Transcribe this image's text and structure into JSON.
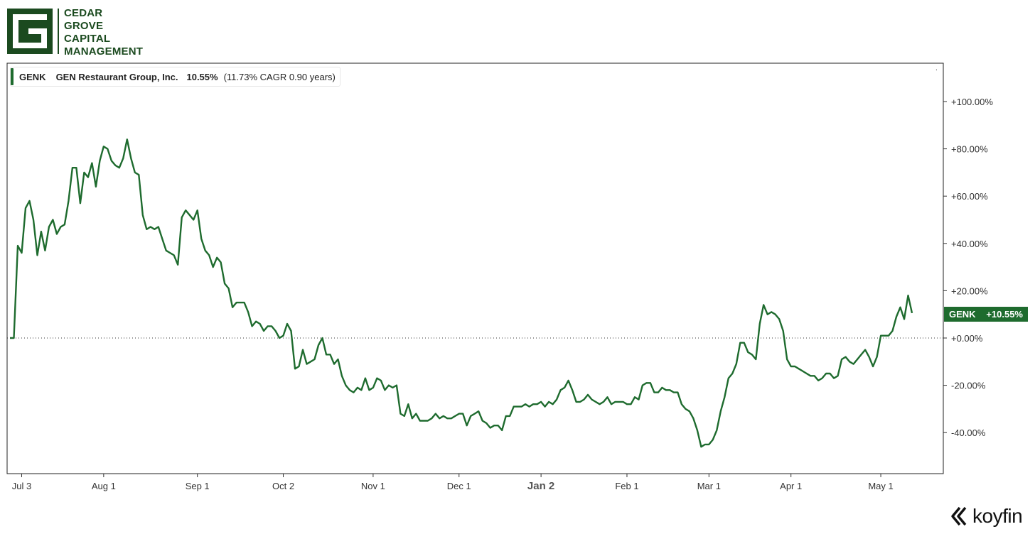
{
  "logo": {
    "lines": [
      "CEDAR",
      "GROVE",
      "CAPITAL",
      "MANAGEMENT"
    ]
  },
  "legend": {
    "ticker": "GENK",
    "name": "GEN Restaurant Group, Inc.",
    "return": "10.55%",
    "cagr_text": "(11.73% CAGR 0.90 years)"
  },
  "price_tag": {
    "ticker": "GENK",
    "value": "+10.55%"
  },
  "brand": {
    "name": "koyfin",
    "icon": "koyfin-logo-icon"
  },
  "colors": {
    "line": "#1e6b2e",
    "brand_green": "#1b4a1f",
    "zero_line": "#333333"
  },
  "chart_data": {
    "type": "line",
    "title": "",
    "xlabel": "",
    "ylabel": "",
    "y_unit": "%",
    "ylim": [
      -58,
      115
    ],
    "y_ticks": [
      100,
      80,
      60,
      40,
      20,
      0,
      -20,
      -40
    ],
    "y_tick_labels": [
      "+100.00%",
      "+80.00%",
      "+60.00%",
      "+40.00%",
      "+20.00%",
      "+0.00%",
      "-20.00%",
      "-40.00%"
    ],
    "x_tick_labels": [
      "Jul 3",
      "Aug 1",
      "Sep 1",
      "Oct 2",
      "Nov 1",
      "Dec 1",
      "Jan 2",
      "Feb 1",
      "Mar 1",
      "Apr 1",
      "May 1"
    ],
    "x_tick_index": [
      3,
      24,
      48,
      70,
      93,
      115,
      136,
      158,
      179,
      200,
      223
    ],
    "bold_x_tick": "Jan 2",
    "zero_line": "dotted",
    "legend": "top-left",
    "grid": false,
    "series": [
      {
        "name": "GENK",
        "values": [
          0,
          0,
          39,
          36,
          55,
          58,
          50,
          35,
          45,
          37,
          47,
          50,
          44,
          47,
          48,
          58,
          72,
          72,
          57,
          70,
          68,
          74,
          64,
          75,
          81,
          80,
          75,
          73,
          72,
          76,
          84,
          76,
          70,
          69,
          52,
          46,
          47,
          46,
          47,
          42,
          37,
          36,
          35,
          31,
          51,
          54,
          52,
          50,
          54,
          42,
          37,
          35,
          30,
          34,
          32,
          23,
          21,
          13,
          15,
          15,
          15,
          11,
          5,
          7,
          6,
          3,
          5,
          5,
          3,
          0,
          1,
          6,
          3,
          -13,
          -12,
          -5,
          -11,
          -10,
          -9,
          -3,
          0,
          -7,
          -7,
          -11,
          -9,
          -16,
          -20,
          -22,
          -23,
          -21,
          -22,
          -17,
          -22,
          -21,
          -17,
          -18,
          -22,
          -20,
          -21,
          -20,
          -32,
          -33,
          -28,
          -34,
          -32,
          -35,
          -35,
          -35,
          -34,
          -32,
          -34,
          -33,
          -34,
          -34,
          -33,
          -32,
          -32,
          -37,
          -33,
          -32,
          -31,
          -35,
          -36,
          -38,
          -37,
          -37,
          -39,
          -33,
          -33,
          -29,
          -29,
          -29,
          -28,
          -29,
          -28,
          -28,
          -27,
          -29,
          -27,
          -28,
          -26,
          -22,
          -21,
          -18,
          -22,
          -27,
          -27,
          -26,
          -24,
          -26,
          -27,
          -28,
          -27,
          -25,
          -28,
          -27,
          -27,
          -27,
          -28,
          -28,
          -25,
          -26,
          -20,
          -19,
          -19,
          -23,
          -23,
          -21,
          -22,
          -22,
          -23,
          -23,
          -28,
          -30,
          -31,
          -34,
          -39,
          -46,
          -45,
          -45,
          -43,
          -39,
          -31,
          -25,
          -17,
          -15,
          -11,
          -2,
          -2,
          -6,
          -7,
          -9,
          6,
          14,
          10,
          11,
          10,
          8,
          3,
          -9,
          -12,
          -12,
          -13,
          -14,
          -15,
          -16,
          -16,
          -18,
          -17,
          -15,
          -15,
          -17,
          -16,
          -9,
          -8,
          -10,
          -11,
          -9,
          -7,
          -5,
          -8,
          -12,
          -8,
          1,
          1,
          1,
          3,
          9,
          13,
          8,
          18,
          10.55
        ]
      }
    ]
  }
}
